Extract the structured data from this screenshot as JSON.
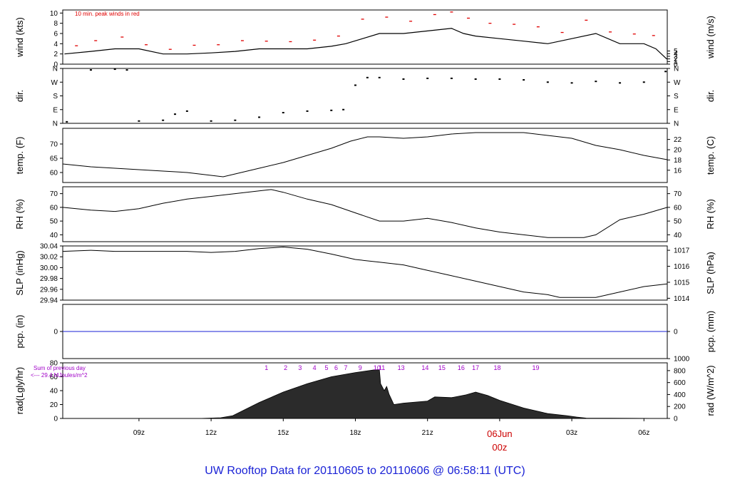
{
  "footer": {
    "title": "UW Rooftop Data for 20110605  to  20110606 @ 06:58:11  (UTC)"
  },
  "colors": {
    "line": "#000000",
    "peak": "#e00000",
    "pcp": "#1a22d6",
    "date": "#cc0000",
    "sunlabel": "#a000c8",
    "rad_fill": "#2b2b2b"
  },
  "chart_data": [
    {
      "id": "wind",
      "type": "line",
      "time_range_h": [
        5.83,
        30.97
      ],
      "ylabel_left": "wind (kts)",
      "ylabel_right": "wind (m/s)",
      "ylim": [
        0,
        10.6
      ],
      "yticks": [
        0,
        2,
        4,
        6,
        8,
        10
      ],
      "ticks_right_conv": "ms",
      "yticks_right": [
        0,
        1,
        2,
        3,
        4,
        5
      ],
      "annotation": "10 min. peak winds in red",
      "series": [
        {
          "name": "wind speed",
          "x": [
            5.9,
            7.0,
            8.0,
            9.0,
            10.0,
            11.0,
            12.0,
            13.0,
            14.0,
            15.0,
            16.0,
            17.0,
            17.6,
            18.3,
            19.0,
            20.0,
            21.0,
            22.0,
            22.5,
            23.0,
            24.0,
            25.0,
            26.0,
            27.0,
            28.0,
            29.0,
            30.0,
            30.5,
            30.95
          ],
          "y": [
            2.0,
            2.5,
            3.0,
            3.0,
            2.0,
            2.0,
            2.2,
            2.5,
            3.0,
            3.0,
            3.0,
            3.5,
            4.0,
            5.0,
            6.0,
            6.0,
            6.5,
            7.0,
            6.0,
            5.5,
            5.0,
            4.5,
            4.0,
            5.0,
            6.0,
            4.0,
            4.0,
            3.0,
            1.0
          ]
        }
      ],
      "peaks": {
        "x": [
          6.4,
          7.2,
          8.3,
          9.3,
          10.3,
          11.3,
          12.3,
          13.3,
          14.3,
          15.3,
          16.3,
          17.3,
          18.3,
          19.3,
          20.3,
          21.3,
          22.0,
          22.7,
          23.6,
          24.6,
          25.6,
          26.6,
          27.6,
          28.6,
          29.6,
          30.4
        ],
        "y": [
          3.6,
          4.6,
          5.3,
          3.8,
          2.9,
          3.7,
          3.8,
          4.6,
          4.5,
          4.4,
          4.7,
          5.5,
          8.8,
          9.2,
          8.4,
          9.7,
          10.2,
          9.0,
          8.0,
          7.8,
          7.3,
          6.2,
          8.6,
          6.3,
          5.9,
          5.6
        ]
      }
    },
    {
      "id": "dir",
      "type": "scatter",
      "time_range_h": [
        5.83,
        30.97
      ],
      "ylabel_left": "dir.",
      "ylabel_right": "dir.",
      "ylim": [
        0,
        360
      ],
      "yticks": [
        0,
        90,
        180,
        270,
        360
      ],
      "ytick_labels": [
        "N",
        "E",
        "S",
        "W",
        "N"
      ],
      "series": [
        {
          "name": "direction",
          "x": [
            6.0,
            7.0,
            8.0,
            8.5,
            9.0,
            10.0,
            10.5,
            11.0,
            12.0,
            13.0,
            14.0,
            15.0,
            16.0,
            17.0,
            17.5,
            18.0,
            18.5,
            19.0,
            20.0,
            21.0,
            22.0,
            23.0,
            24.0,
            25.0,
            26.0,
            27.0,
            28.0,
            29.0,
            30.0,
            30.9
          ],
          "y": [
            10,
            350,
            355,
            350,
            15,
            20,
            60,
            80,
            15,
            20,
            40,
            70,
            80,
            85,
            90,
            250,
            300,
            300,
            290,
            295,
            295,
            290,
            290,
            285,
            270,
            265,
            275,
            265,
            270,
            340
          ]
        }
      ]
    },
    {
      "id": "temp",
      "type": "line",
      "time_range_h": [
        5.83,
        30.97
      ],
      "ylabel_left": "temp. (F)",
      "ylabel_right": "temp. (C)",
      "ylim": [
        56.5,
        75.5
      ],
      "yticks": [
        60,
        65,
        70
      ],
      "ticks_right_conv": "c",
      "yticks_right": [
        16,
        18,
        20,
        22
      ],
      "series": [
        {
          "name": "temperature",
          "x": [
            5.83,
            7.0,
            8.0,
            9.0,
            10.0,
            11.0,
            12.0,
            12.5,
            13.0,
            14.0,
            15.0,
            16.0,
            17.0,
            17.8,
            18.5,
            19.0,
            20.0,
            21.0,
            22.0,
            23.0,
            24.0,
            25.0,
            26.0,
            27.0,
            28.0,
            29.0,
            30.0,
            30.97
          ],
          "y": [
            63.0,
            62.0,
            61.5,
            61.0,
            60.5,
            60.0,
            59.0,
            58.5,
            59.5,
            61.5,
            63.5,
            66.0,
            68.5,
            71.0,
            72.5,
            72.5,
            72.0,
            72.5,
            73.5,
            74.0,
            74.0,
            74.0,
            73.0,
            72.0,
            69.5,
            68.0,
            66.0,
            64.5
          ]
        }
      ]
    },
    {
      "id": "rh",
      "type": "line",
      "time_range_h": [
        5.83,
        30.97
      ],
      "ylabel_left": "RH (%)",
      "ylabel_right": "RH (%)",
      "ylim": [
        35,
        75
      ],
      "yticks": [
        40,
        50,
        60,
        70
      ],
      "yticks_right": [
        40,
        50,
        60,
        70
      ],
      "series": [
        {
          "name": "relative humidity",
          "x": [
            5.83,
            7.0,
            8.0,
            9.0,
            10.0,
            11.0,
            12.0,
            13.0,
            14.0,
            14.5,
            15.0,
            16.0,
            17.0,
            18.0,
            19.0,
            20.0,
            21.0,
            22.0,
            23.0,
            24.0,
            25.0,
            26.0,
            27.0,
            27.5,
            28.0,
            29.0,
            30.0,
            30.97
          ],
          "y": [
            60,
            58,
            57,
            59,
            63,
            66,
            68,
            70,
            72,
            73,
            71,
            66,
            62,
            56,
            50,
            50,
            52,
            49,
            45,
            42,
            40,
            38,
            38,
            38,
            40,
            51,
            55,
            60
          ]
        }
      ]
    },
    {
      "id": "slp",
      "type": "line",
      "time_range_h": [
        5.83,
        30.97
      ],
      "ylabel_left": "SLP (inHg)",
      "ylabel_right": "SLP (hPa)",
      "ylim": [
        29.94,
        30.04
      ],
      "yticks": [
        29.94,
        29.96,
        29.98,
        30.0,
        30.02,
        30.04
      ],
      "ytick_labels": [
        "29.94",
        "29.96",
        "29.98",
        "30.00",
        "30.02",
        "30.04"
      ],
      "ticks_right_conv": "hpa",
      "yticks_right": [
        1014,
        1015,
        1016,
        1017
      ],
      "series": [
        {
          "name": "sea level pressure",
          "x": [
            5.83,
            7.0,
            8.0,
            9.0,
            10.0,
            11.0,
            12.0,
            13.0,
            14.0,
            15.0,
            16.0,
            17.0,
            18.0,
            19.0,
            20.0,
            21.0,
            22.0,
            23.0,
            24.0,
            25.0,
            26.0,
            26.5,
            27.0,
            28.0,
            29.0,
            30.0,
            30.97
          ],
          "y": [
            30.03,
            30.032,
            30.03,
            30.03,
            30.03,
            30.03,
            30.028,
            30.03,
            30.035,
            30.038,
            30.034,
            30.025,
            30.015,
            30.01,
            30.005,
            29.995,
            29.985,
            29.975,
            29.965,
            29.955,
            29.95,
            29.945,
            29.945,
            29.945,
            29.955,
            29.965,
            29.97
          ]
        }
      ]
    },
    {
      "id": "pcp",
      "type": "line",
      "time_range_h": [
        5.83,
        30.97
      ],
      "ylabel_left": "pcp. (in)",
      "ylabel_right": "pcp. (mm)",
      "ylim": [
        -0.5,
        0.5
      ],
      "yticks": [
        0
      ],
      "yticks_right": [
        0
      ],
      "series": [
        {
          "name": "precipitation",
          "x": [
            5.83,
            30.97
          ],
          "y": [
            0,
            0
          ]
        }
      ]
    },
    {
      "id": "rad",
      "type": "area",
      "time_range_h": [
        5.83,
        30.97
      ],
      "ylabel_left": "rad(Lgly/hr)",
      "ylabel_right": "rad (W/m^2)",
      "ylim": [
        0,
        80
      ],
      "yticks": [
        0,
        20,
        40,
        60,
        80
      ],
      "ticks_right_conv": "wm2",
      "yticks_right": [
        0,
        200,
        400,
        600,
        800,
        1000
      ],
      "sun_note": [
        "Sum of previous day",
        "<--- 29.4 MJoules/m^2"
      ],
      "sun_marks": {
        "labels": [
          "1",
          "2",
          "3",
          "4",
          "5",
          "6",
          "7",
          "9",
          "10",
          "11",
          "13",
          "14",
          "15",
          "16",
          "17",
          "18",
          "19"
        ],
        "x": [
          14.3,
          15.1,
          15.7,
          16.3,
          16.8,
          17.2,
          17.6,
          18.2,
          18.9,
          19.1,
          19.9,
          20.9,
          21.6,
          22.4,
          23.0,
          23.9,
          25.5
        ]
      },
      "series": [
        {
          "name": "solar radiation",
          "x": [
            5.83,
            11.5,
            12.4,
            12.9,
            14.0,
            15.0,
            16.0,
            17.0,
            18.0,
            18.8,
            19.0,
            19.05,
            19.2,
            19.3,
            19.4,
            19.6,
            20.0,
            21.0,
            21.3,
            22.0,
            22.6,
            23.0,
            23.5,
            24.0,
            25.0,
            26.0,
            26.8,
            27.2,
            27.6,
            30.97
          ],
          "y": [
            0,
            0,
            1,
            4,
            23,
            38,
            50,
            60,
            66,
            70,
            70,
            50,
            40,
            46,
            35,
            20,
            22,
            25,
            31,
            30,
            34,
            38,
            33,
            26,
            15,
            7,
            4,
            2,
            0.5,
            0
          ]
        }
      ]
    },
    {
      "id": "time_axis",
      "xticks": [
        9,
        12,
        15,
        18,
        21,
        24,
        27,
        30
      ],
      "xtick_labels": [
        "09z",
        "12z",
        "15z",
        "18z",
        "21z",
        "00z",
        "03z",
        "06z"
      ],
      "date_label": [
        "06Jun",
        "00z"
      ]
    }
  ]
}
